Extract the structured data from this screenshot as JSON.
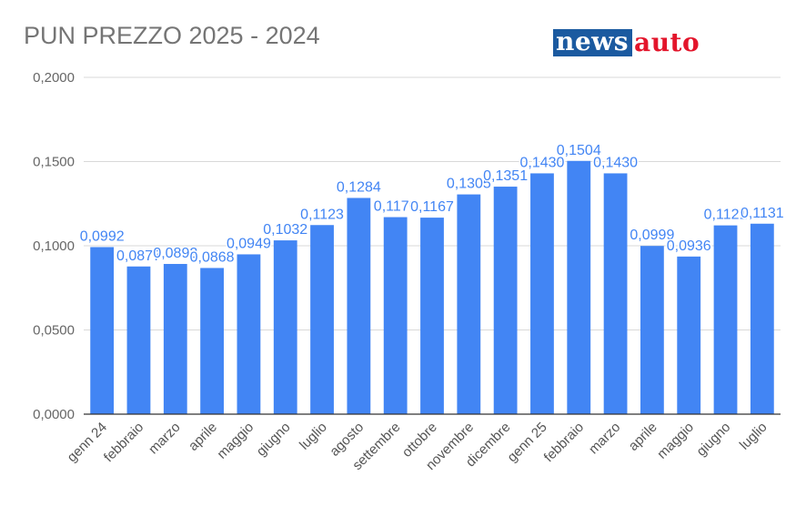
{
  "title": "PUN PREZZO 2025 - 2024",
  "logo": {
    "part1": "news",
    "part2": "auto",
    "color1_bg": "#1b5aa0",
    "color2": "#e3152b"
  },
  "colors": {
    "bar": "#4285f4",
    "label": "#4285f4",
    "grid": "#d9d9d9",
    "baseline": "#333333"
  },
  "chart_data": {
    "type": "bar",
    "categories": [
      "genn 24",
      "febbraio",
      "marzo",
      "aprile",
      "maggio",
      "giugno",
      "luglio",
      "agosto",
      "settembre",
      "ottobre",
      "novembre",
      "dicembre",
      "genn 25",
      "febbraio",
      "marzo",
      "aprile",
      "maggio",
      "giugno",
      "luglio"
    ],
    "values": [
      0.0992,
      0.0877,
      0.0892,
      0.0868,
      0.0949,
      0.1032,
      0.1123,
      0.1284,
      0.117,
      0.1167,
      0.1305,
      0.1351,
      0.143,
      0.1504,
      0.143,
      0.0999,
      0.0936,
      0.1121,
      0.1131
    ],
    "data_labels": [
      "0,0992",
      "0,0877",
      "0,0892",
      "0,0868",
      "0,0949",
      "0,1032",
      "0,1123",
      "0,1284",
      "0,1170",
      "0,1167",
      "0,1305",
      "0,1351",
      "0,1430",
      "0,1504",
      "0,1430",
      "0,0999",
      "0,0936",
      "0,1121",
      "0,1131"
    ],
    "ylim": [
      0,
      0.2
    ],
    "yticks": [
      "0,0000",
      "0,0500",
      "0,1000",
      "0,1500",
      "0,2000"
    ],
    "ytick_values": [
      0,
      0.05,
      0.1,
      0.15,
      0.2
    ],
    "grid": true,
    "legend": "none"
  }
}
